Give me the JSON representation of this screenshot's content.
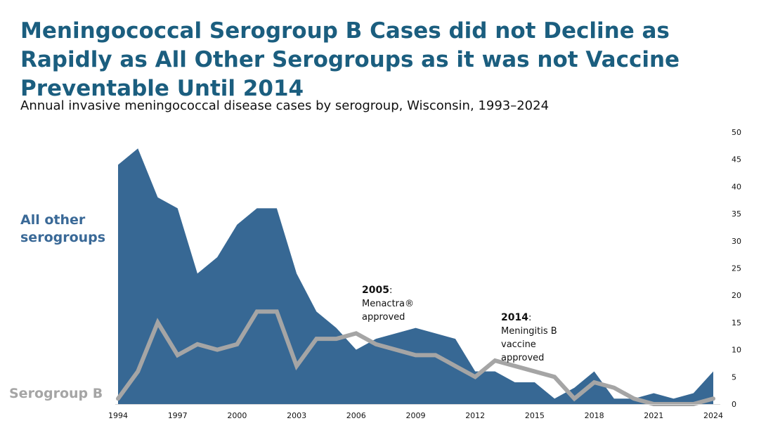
{
  "colors": {
    "title": "#1b5e7f",
    "area_fill": "#376894",
    "line_stroke": "#a5a5a5",
    "axis": "#d9d9d9"
  },
  "labels": {
    "all_other": "All other serogroups",
    "serogroup_b": "Serogroup B"
  },
  "chart_data": {
    "type": "area",
    "title": "Meningococcal Serogroup B Cases did not Decline as Rapidly as All Other Serogroups as it was not Vaccine Preventable Until 2014",
    "subtitle": "Annual invasive meningococcal disease cases by serogroup, Wisconsin, 1993–2024",
    "xlabel": "",
    "ylabel": "",
    "x": [
      1994,
      1995,
      1996,
      1997,
      1998,
      1999,
      2000,
      2001,
      2002,
      2003,
      2004,
      2005,
      2006,
      2007,
      2008,
      2009,
      2010,
      2011,
      2012,
      2013,
      2014,
      2015,
      2016,
      2017,
      2018,
      2019,
      2020,
      2021,
      2022,
      2023,
      2024
    ],
    "x_tick_labels": [
      "1994",
      "1997",
      "2000",
      "2003",
      "2006",
      "2009",
      "2012",
      "2015",
      "2018",
      "2021",
      "2024"
    ],
    "y_tick_labels": [
      "0",
      "5",
      "10",
      "15",
      "20",
      "25",
      "30",
      "35",
      "40",
      "45",
      "50"
    ],
    "ylim": [
      0,
      50
    ],
    "y_axis_side": "right",
    "grid": false,
    "legend": "inline-left",
    "series": [
      {
        "name": "All other serogroups",
        "type": "area",
        "values": [
          44,
          47,
          38,
          36,
          24,
          27,
          33,
          36,
          36,
          24,
          17,
          14,
          10,
          12,
          13,
          14,
          13,
          12,
          6,
          6,
          4,
          4,
          1,
          3,
          6,
          1,
          1,
          2,
          1,
          2,
          6
        ]
      },
      {
        "name": "Serogroup B",
        "type": "line",
        "values": [
          1,
          6,
          15,
          9,
          11,
          10,
          11,
          17,
          17,
          7,
          12,
          12,
          13,
          11,
          10,
          9,
          9,
          7,
          5,
          8,
          7,
          6,
          5,
          1,
          4,
          3,
          1,
          0,
          0,
          0,
          1
        ]
      }
    ],
    "annotations": [
      {
        "year_label": "2005",
        "colon": ":",
        "lines": [
          "Menactra®",
          "approved"
        ]
      },
      {
        "year_label": "2014",
        "colon": ":",
        "lines": [
          "Meningitis B",
          "vaccine",
          "approved"
        ]
      }
    ]
  }
}
